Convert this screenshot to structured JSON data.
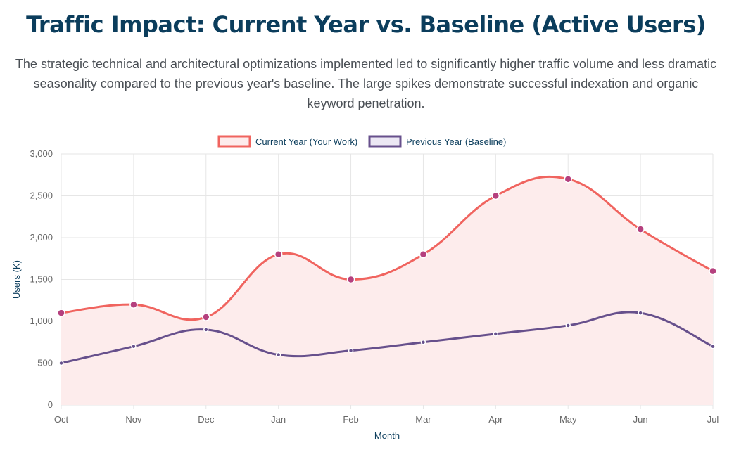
{
  "header": {
    "title": "Traffic Impact: Current Year vs. Baseline (Active Users)",
    "description": "The strategic technical and architectural optimizations implemented led to significantly higher traffic volume and less dramatic seasonality compared to the previous year's baseline. The large spikes demonstrate successful indexation and organic keyword penetration."
  },
  "chart_data": {
    "type": "line",
    "categories": [
      "Oct",
      "Nov",
      "Dec",
      "Jan",
      "Feb",
      "Mar",
      "Apr",
      "May",
      "Jun",
      "Jul"
    ],
    "series": [
      {
        "name": "Current Year (Your Work)",
        "values": [
          1100,
          1200,
          1050,
          1800,
          1500,
          1800,
          2500,
          2700,
          2100,
          1600
        ],
        "line_color": "#f0645f",
        "fill_color": "#fdecec",
        "point_color": "#b5407e",
        "filled": true
      },
      {
        "name": "Previous Year (Baseline)",
        "values": [
          500,
          700,
          900,
          600,
          650,
          750,
          850,
          950,
          1100,
          700
        ],
        "line_color": "#67508c",
        "fill_color": "#ece8f4",
        "point_color": "#67508c",
        "filled": false
      }
    ],
    "xlabel": "Month",
    "ylabel": "Users (K)",
    "ylim": [
      0,
      3000
    ],
    "yticks": [
      0,
      500,
      1000,
      1500,
      2000,
      2500,
      3000
    ],
    "ytick_labels": [
      "0",
      "500",
      "1,000",
      "1,500",
      "2,000",
      "2,500",
      "3,000"
    ],
    "grid": true,
    "legend_position": "top-center"
  }
}
